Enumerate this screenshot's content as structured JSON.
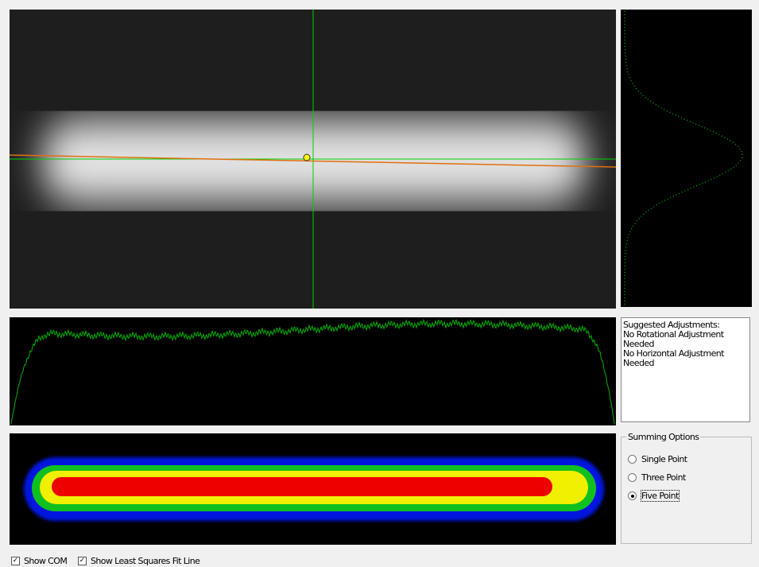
{
  "adjustments": {
    "heading": "Suggested Adjustments:",
    "lines": [
      "No Rotational Adjustment Needed",
      "No Horizontal Adjustment Needed"
    ]
  },
  "summing_options": {
    "title": "Summing Options",
    "options": [
      "Single Point",
      "Three Point",
      "Five Point"
    ],
    "selected": 2
  },
  "checkboxes": [
    {
      "label": "Show COM",
      "checked": true
    },
    {
      "label": "Show Least Squares Fit Line",
      "checked": true
    }
  ]
}
